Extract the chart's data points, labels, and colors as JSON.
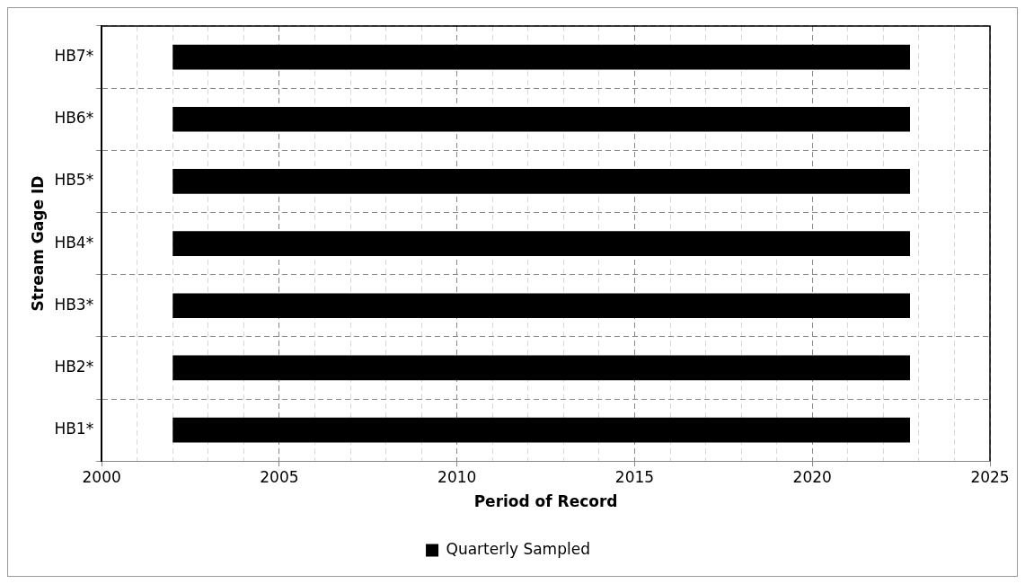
{
  "chart_data": {
    "type": "bar",
    "orientation": "horizontal",
    "xlabel": "Period of Record",
    "ylabel": "Stream Gage ID",
    "categories": [
      "HB7*",
      "HB6*",
      "HB5*",
      "HB4*",
      "HB3*",
      "HB2*",
      "HB1*"
    ],
    "series": [
      {
        "name": "Quarterly Sampled",
        "color": "#000000",
        "values": [
          20.75,
          20.75,
          20.75,
          20.75,
          20.75,
          20.75,
          20.75
        ],
        "base": [
          2002,
          2002,
          2002,
          2002,
          2002,
          2002,
          2002
        ]
      }
    ],
    "xlim": [
      2000,
      2025
    ],
    "xticks": [
      2000,
      {
        "value": 2001,
        "label": null
      },
      {
        "value": 2002,
        "label": null
      },
      {
        "value": 2003,
        "label": null
      },
      {
        "value": 2004,
        "label": null
      },
      2005,
      {
        "value": 2006,
        "label": null
      },
      {
        "value": 2007,
        "label": null
      },
      {
        "value": 2008,
        "label": null
      },
      {
        "value": 2009,
        "label": null
      },
      2010,
      {
        "value": 2011,
        "label": null
      },
      {
        "value": 2012,
        "label": null
      },
      {
        "value": 2013,
        "label": null
      },
      {
        "value": 2014,
        "label": null
      },
      2015,
      {
        "value": 2016,
        "label": null
      },
      {
        "value": 2017,
        "label": null
      },
      {
        "value": 2018,
        "label": null
      },
      {
        "value": 2019,
        "label": null
      },
      2020,
      {
        "value": 2021,
        "label": null
      },
      {
        "value": 2022,
        "label": null
      },
      {
        "value": 2023,
        "label": null
      },
      {
        "value": 2024,
        "label": null
      },
      2025
    ],
    "grid": true,
    "legend": "bottom"
  }
}
